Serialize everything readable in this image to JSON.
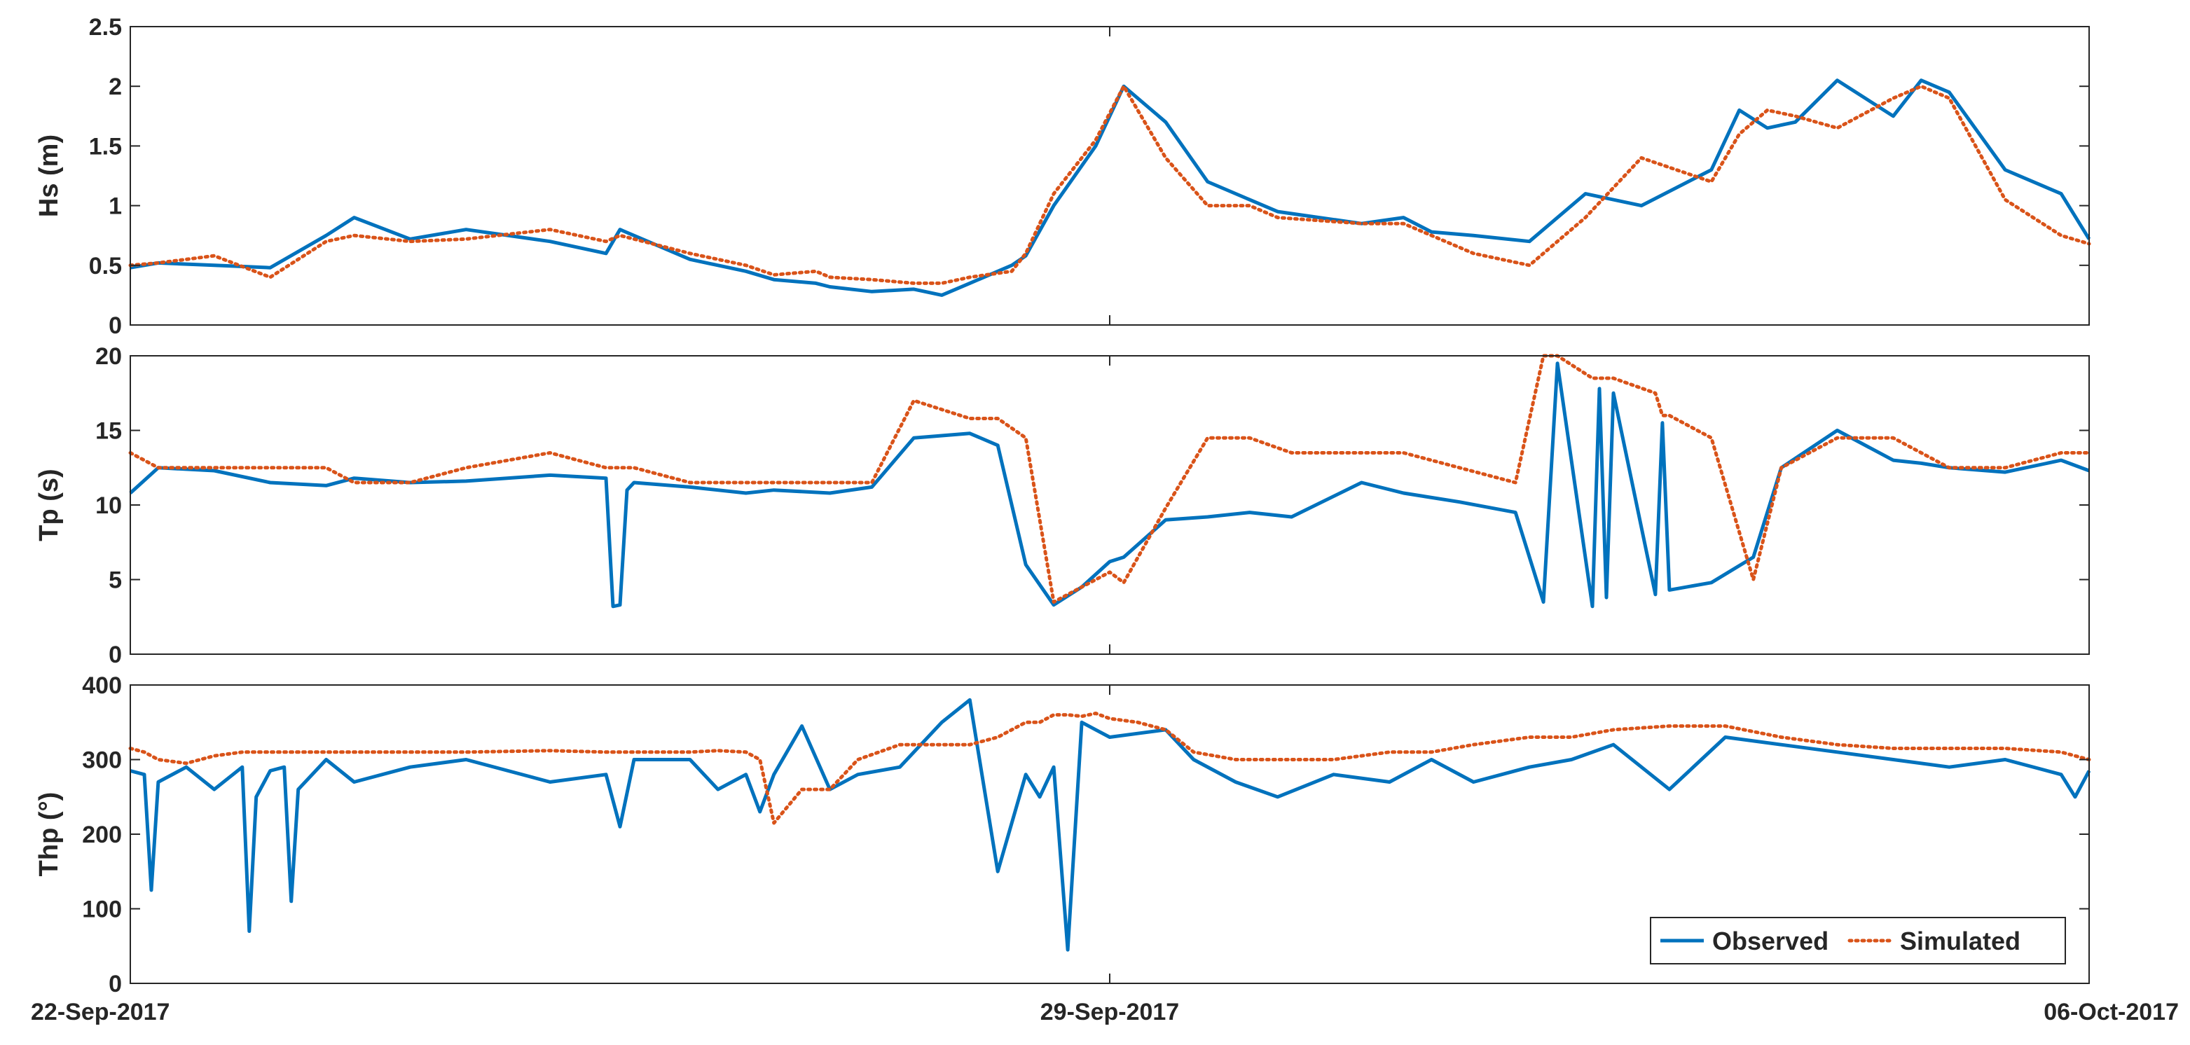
{
  "chart_data": [
    {
      "type": "line",
      "ylabel": "Hs (m)",
      "ylim": [
        0,
        2.5
      ],
      "yticks": [
        0,
        0.5,
        1,
        1.5,
        2,
        2.5
      ],
      "ytick_labels": [
        "0",
        "0.5",
        "1",
        "1.5",
        "2",
        "2.5"
      ],
      "xlim": [
        "2017-09-22",
        "2017-10-06"
      ],
      "x_anchors_days": [
        0,
        0.2,
        0.6,
        1.0,
        1.4,
        1.6,
        2.0,
        2.4,
        3.0,
        3.4,
        3.5,
        4.0,
        4.4,
        4.6,
        4.9,
        5.0,
        5.3,
        5.6,
        5.8,
        6.0,
        6.3,
        6.4,
        6.6,
        6.9,
        7.1,
        7.4,
        7.7,
        8.0,
        8.2,
        8.8,
        9.1,
        9.3,
        9.6,
        10.0,
        10.4,
        10.8,
        11.3,
        11.5,
        11.7,
        11.9,
        12.2,
        12.6,
        12.8,
        13.0,
        13.4,
        13.8,
        14.0
      ],
      "series": [
        {
          "name": "Observed",
          "color": "#0072BD",
          "style": "solid",
          "values": [
            0.48,
            0.52,
            0.5,
            0.48,
            0.75,
            0.9,
            0.72,
            0.8,
            0.7,
            0.6,
            0.8,
            0.55,
            0.45,
            0.38,
            0.35,
            0.32,
            0.28,
            0.3,
            0.25,
            0.35,
            0.5,
            0.58,
            1.0,
            1.5,
            2.0,
            1.7,
            1.2,
            1.05,
            0.95,
            0.85,
            0.9,
            0.78,
            0.75,
            0.7,
            1.1,
            1.0,
            1.3,
            1.8,
            1.65,
            1.7,
            2.05,
            1.75,
            2.05,
            1.95,
            1.3,
            1.1,
            0.72
          ]
        },
        {
          "name": "Simulated",
          "color": "#D95319",
          "style": "dotted",
          "values": [
            0.5,
            0.52,
            0.58,
            0.4,
            0.7,
            0.75,
            0.7,
            0.72,
            0.8,
            0.7,
            0.75,
            0.6,
            0.5,
            0.42,
            0.45,
            0.4,
            0.38,
            0.35,
            0.35,
            0.4,
            0.45,
            0.6,
            1.1,
            1.55,
            2.0,
            1.4,
            1.0,
            1.0,
            0.9,
            0.85,
            0.85,
            0.75,
            0.6,
            0.5,
            0.9,
            1.4,
            1.2,
            1.6,
            1.8,
            1.75,
            1.65,
            1.9,
            2.0,
            1.9,
            1.05,
            0.75,
            0.68
          ]
        }
      ]
    },
    {
      "type": "line",
      "ylabel": "Tp (s)",
      "ylim": [
        0,
        20
      ],
      "yticks": [
        0,
        5,
        10,
        15,
        20
      ],
      "ytick_labels": [
        "0",
        "5",
        "10",
        "15",
        "20"
      ],
      "xlim": [
        "2017-09-22",
        "2017-10-06"
      ],
      "x_anchors_days": [
        0,
        0.2,
        0.6,
        1.0,
        1.4,
        1.6,
        2.0,
        2.4,
        3.0,
        3.4,
        3.45,
        3.5,
        3.55,
        3.6,
        4.0,
        4.4,
        4.6,
        5.0,
        5.3,
        5.6,
        6.0,
        6.2,
        6.4,
        6.6,
        6.8,
        7.0,
        7.1,
        7.4,
        7.7,
        8.0,
        8.3,
        8.8,
        9.1,
        9.5,
        9.9,
        10.1,
        10.2,
        10.45,
        10.5,
        10.55,
        10.6,
        10.9,
        10.95,
        11.0,
        11.3,
        11.6,
        11.8,
        12.2,
        12.6,
        12.8,
        13.0,
        13.4,
        13.8,
        14.0
      ],
      "series": [
        {
          "name": "Observed",
          "color": "#0072BD",
          "style": "solid",
          "values": [
            10.8,
            12.5,
            12.3,
            11.5,
            11.3,
            11.8,
            11.5,
            11.6,
            12.0,
            11.8,
            3.2,
            3.3,
            11.0,
            11.5,
            11.2,
            10.8,
            11.0,
            10.8,
            11.2,
            14.5,
            14.8,
            14.0,
            6.0,
            3.3,
            4.5,
            6.2,
            6.5,
            9.0,
            9.2,
            9.5,
            9.2,
            11.5,
            10.8,
            10.2,
            9.5,
            3.5,
            19.5,
            3.2,
            17.8,
            3.8,
            17.5,
            4.0,
            15.5,
            4.3,
            4.8,
            6.5,
            12.5,
            15.0,
            13.0,
            12.8,
            12.5,
            12.2,
            13.0,
            12.3
          ]
        },
        {
          "name": "Simulated",
          "color": "#D95319",
          "style": "dotted",
          "values": [
            13.5,
            12.5,
            12.5,
            12.5,
            12.5,
            11.5,
            11.5,
            12.5,
            13.5,
            12.5,
            12.5,
            12.5,
            12.5,
            12.5,
            11.5,
            11.5,
            11.5,
            11.5,
            11.5,
            17.0,
            15.8,
            15.8,
            14.5,
            3.5,
            4.5,
            5.5,
            4.8,
            9.8,
            14.5,
            14.5,
            13.5,
            13.5,
            13.5,
            12.5,
            11.5,
            20.0,
            20.0,
            18.5,
            18.5,
            18.5,
            18.5,
            17.5,
            16.0,
            16.0,
            14.5,
            5.0,
            12.5,
            14.5,
            14.5,
            13.5,
            12.5,
            12.5,
            13.5,
            13.5
          ]
        }
      ]
    },
    {
      "type": "line",
      "ylabel": "Thp (°)",
      "ylim": [
        0,
        400
      ],
      "yticks": [
        0,
        100,
        200,
        300,
        400
      ],
      "ytick_labels": [
        "0",
        "100",
        "200",
        "300",
        "400"
      ],
      "xlim": [
        "2017-09-22",
        "2017-10-06"
      ],
      "x_anchors_days": [
        0,
        0.1,
        0.15,
        0.2,
        0.4,
        0.6,
        0.8,
        0.85,
        0.9,
        1.0,
        1.1,
        1.15,
        1.2,
        1.4,
        1.6,
        2.0,
        2.4,
        3.0,
        3.4,
        3.5,
        3.6,
        4.0,
        4.2,
        4.4,
        4.5,
        4.6,
        4.8,
        5.0,
        5.2,
        5.5,
        5.8,
        6.0,
        6.2,
        6.4,
        6.5,
        6.6,
        6.7,
        6.8,
        6.9,
        7.0,
        7.2,
        7.4,
        7.6,
        7.9,
        8.2,
        8.6,
        9.0,
        9.3,
        9.6,
        10.0,
        10.3,
        10.6,
        11.0,
        11.4,
        11.8,
        12.2,
        12.6,
        13.0,
        13.4,
        13.8,
        13.9,
        14.0
      ],
      "series": [
        {
          "name": "Observed",
          "color": "#0072BD",
          "style": "solid",
          "values": [
            285,
            280,
            125,
            270,
            290,
            260,
            290,
            70,
            250,
            285,
            290,
            110,
            260,
            300,
            270,
            290,
            300,
            270,
            280,
            210,
            300,
            300,
            260,
            280,
            230,
            280,
            345,
            260,
            280,
            290,
            350,
            380,
            150,
            280,
            250,
            290,
            45,
            350,
            340,
            330,
            335,
            340,
            300,
            270,
            250,
            280,
            270,
            300,
            270,
            290,
            300,
            320,
            260,
            330,
            320,
            310,
            300,
            290,
            300,
            280,
            250,
            285
          ]
        },
        {
          "name": "Simulated",
          "color": "#D95319",
          "style": "dotted",
          "values": [
            315,
            310,
            305,
            300,
            295,
            305,
            310,
            310,
            310,
            310,
            310,
            310,
            310,
            310,
            310,
            310,
            310,
            312,
            310,
            310,
            310,
            310,
            312,
            310,
            300,
            215,
            260,
            260,
            300,
            320,
            320,
            320,
            330,
            350,
            350,
            360,
            360,
            358,
            362,
            355,
            350,
            340,
            310,
            300,
            300,
            300,
            310,
            310,
            320,
            330,
            330,
            340,
            345,
            345,
            330,
            320,
            315,
            315,
            315,
            310,
            305,
            300
          ]
        }
      ]
    }
  ],
  "x_axis": {
    "tick_days": [
      0,
      7,
      14
    ],
    "tick_labels": [
      "22-Sep-2017",
      "29-Sep-2017",
      "06-Oct-2017"
    ]
  },
  "legend": {
    "placement": "bottom-right of lowest panel",
    "entries": [
      "Observed",
      "Simulated"
    ]
  }
}
